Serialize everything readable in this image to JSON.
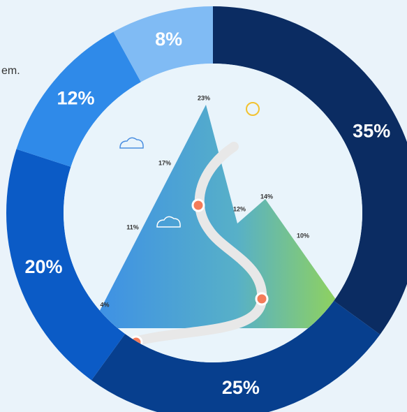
{
  "side_text": "em.",
  "chart_data": {
    "type": "pie",
    "categories": [
      null,
      null,
      null,
      null,
      null
    ],
    "values": [
      35,
      25,
      20,
      12,
      8
    ],
    "value_labels": [
      "35%",
      "25%",
      "20%",
      "12%",
      "8%"
    ],
    "colors": [
      "#0b2c62",
      "#073f8e",
      "#0b5bc6",
      "#2f8ae9",
      "#80bbf4"
    ],
    "annotations": [
      "23%",
      "17%",
      "14%",
      "12%",
      "11%",
      "10%",
      "4%"
    ]
  }
}
